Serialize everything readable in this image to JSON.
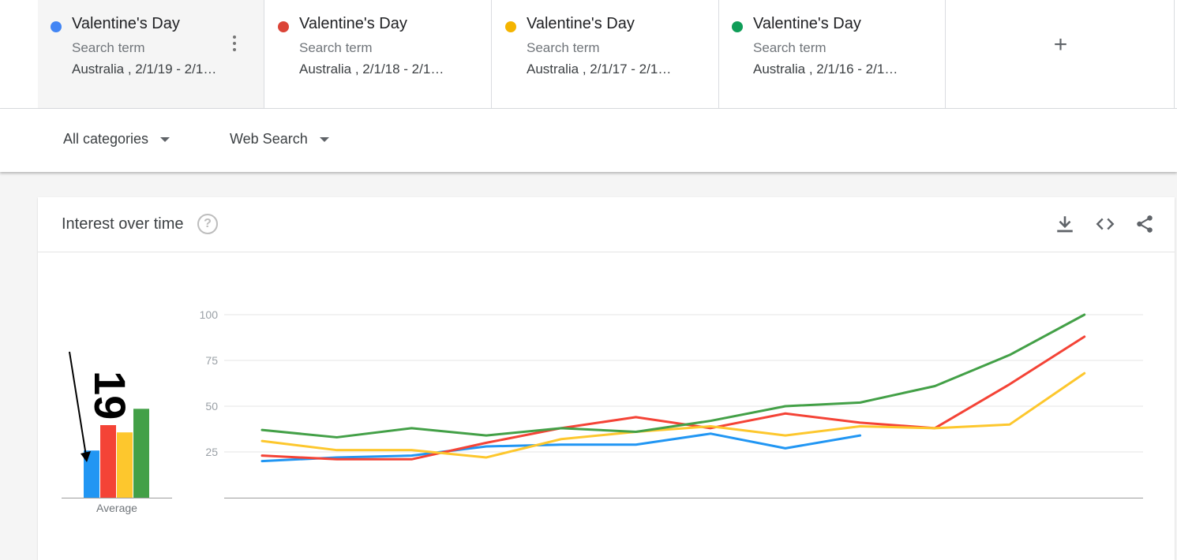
{
  "terms": [
    {
      "title": "Valentine's Day",
      "subtitle": "Search term",
      "meta": "Australia , 2/1/19 - 2/1…",
      "color": "#4285f4"
    },
    {
      "title": "Valentine's Day",
      "subtitle": "Search term",
      "meta": "Australia , 2/1/18 - 2/1…",
      "color": "#db4437"
    },
    {
      "title": "Valentine's Day",
      "subtitle": "Search term",
      "meta": "Australia , 2/1/17 - 2/1…",
      "color": "#f4b400"
    },
    {
      "title": "Valentine's Day",
      "subtitle": "Search term",
      "meta": "Australia , 2/1/16 - 2/1…",
      "color": "#0f9d58"
    }
  ],
  "add_label": "+",
  "filters": {
    "category": "All categories",
    "search_type": "Web Search"
  },
  "card": {
    "title": "Interest over time",
    "help_glyph": "?"
  },
  "icons": {
    "download": "download-icon",
    "embed": "embed-code-icon",
    "share": "share-icon",
    "more": "more-vert-icon",
    "help": "help-icon"
  },
  "annotation": {
    "text": "19"
  },
  "chart_data": [
    {
      "type": "bar",
      "categories": [
        "Average"
      ],
      "series": [
        {
          "color": "#2196f3",
          "values": [
            26
          ]
        },
        {
          "color": "#f44336",
          "values": [
            40
          ]
        },
        {
          "color": "#fdc72d",
          "values": [
            36
          ]
        },
        {
          "color": "#43a047",
          "values": [
            49
          ]
        }
      ],
      "xlabel": "Average"
    },
    {
      "type": "line",
      "yticks": [
        25,
        50,
        75,
        100
      ],
      "ylim": [
        0,
        100
      ],
      "grid": true,
      "series": [
        {
          "color": "#2196f3",
          "values": [
            20,
            22,
            23,
            28,
            29,
            29,
            35,
            27,
            34
          ]
        },
        {
          "color": "#f44336",
          "values": [
            23,
            21,
            21,
            30,
            38,
            44,
            38,
            46,
            41,
            38,
            62,
            88
          ]
        },
        {
          "color": "#fdc72d",
          "values": [
            31,
            26,
            26,
            22,
            32,
            36,
            39,
            34,
            39,
            38,
            40,
            68
          ]
        },
        {
          "color": "#43a047",
          "values": [
            37,
            33,
            38,
            34,
            38,
            36,
            42,
            50,
            52,
            61,
            78,
            100
          ]
        }
      ]
    }
  ]
}
